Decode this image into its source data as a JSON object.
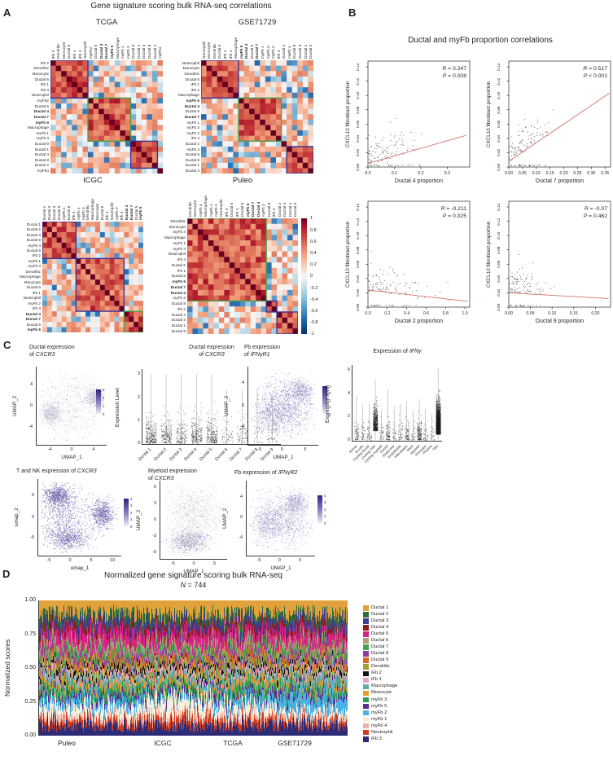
{
  "panelA": {
    "label": "A",
    "title": "Gene signature scoring bulk RNA-seq correlations",
    "colorbar_ticks": [
      "1",
      "0.8",
      "0.6",
      "0.4",
      "0.2",
      "0",
      "-0.2",
      "-0.4",
      "-0.6",
      "-0.8",
      "-1"
    ],
    "box_colors": {
      "navy": "#31319a",
      "green": "#3fa33f"
    },
    "heatmaps": [
      {
        "name": "TCGA",
        "seed": 11,
        "labels": [
          "iFb 2",
          "Dendritic",
          "Monocyte",
          "Ductal 6",
          "iFb 1",
          "iFb 3",
          "Neutrophil",
          "myFb2",
          "Ductal 5",
          "Ductal 4",
          "Ductal 7",
          "myFb 5",
          "Macrophage",
          "myFb 1",
          "myFb 3",
          "Ductal 9",
          "Ductal 1",
          "Ductal 3",
          "Ductal 8",
          "Ductal 2",
          "myFb4"
        ],
        "bold": [
          "Ductal 4",
          "Ductal 7",
          "myFb 5"
        ],
        "boxes": [
          {
            "s": 0,
            "e": 6,
            "c": "navy"
          },
          {
            "s": 7,
            "e": 14,
            "c": "green"
          },
          {
            "s": 15,
            "e": 19,
            "c": "navy"
          }
        ]
      },
      {
        "name": "GSE71729",
        "seed": 23,
        "labels": [
          "Neutrophil",
          "Monocyte",
          "Dendritic",
          "Ductal 6",
          "iFb 1",
          "iFb 2",
          "Macrophage",
          "myFb 5",
          "Ductal 4",
          "Ductal 5",
          "Ductal 7",
          "myFb 1",
          "myFb 3",
          "myFb 2",
          "iFb 3",
          "Ductal 2",
          "myFb 4",
          "Ductal 8",
          "Ductal 9",
          "Ductal 1",
          "Ductal 3"
        ],
        "bold": [
          "myFb 5",
          "Ductal 4",
          "Ductal 7"
        ],
        "boxes": [
          {
            "s": 0,
            "e": 6,
            "c": "navy"
          },
          {
            "s": 7,
            "e": 14,
            "c": "green"
          },
          {
            "s": 16,
            "e": 20,
            "c": "navy"
          }
        ]
      },
      {
        "name": "ICGC",
        "seed": 37,
        "labels": [
          "Ductal 1",
          "Ductal 2",
          "Ductal 3",
          "Ductal 9",
          "myFb 4",
          "Ductal 8",
          "iFb 2",
          "myFb 1",
          "myFb 3",
          "Dendritic",
          "Macrophage",
          "Monocyte",
          "Ductal 6",
          "iFb 1",
          "Neutrophil",
          "myFb 2",
          "iFb 3",
          "Ductal 4",
          "Ductal 7",
          "Ductal 5",
          "myFb 5"
        ],
        "bold": [
          "Ductal 4",
          "Ductal 7",
          "myFb 5"
        ],
        "boxes": [
          {
            "s": 0,
            "e": 6,
            "c": "navy"
          },
          {
            "s": 7,
            "e": 16,
            "c": "navy"
          },
          {
            "s": 17,
            "e": 20,
            "c": "green"
          }
        ]
      },
      {
        "name": "Puleo",
        "seed": 53,
        "labels": [
          "Dendritic",
          "Monocyte",
          "myFb 4",
          "Macrophage",
          "myFb 1",
          "myFb 3",
          "Neutrophil",
          "iFb 3",
          "Ductal 6",
          "iFb 1",
          "Ductal 5",
          "myFb 5",
          "Ductal 7",
          "Ductal 4",
          "myFb 2",
          "Ductal 8",
          "iFb 2",
          "Ductal 2",
          "Ductal 3",
          "Ductal 1",
          "Ductal 9"
        ],
        "bold": [
          "myFb 5",
          "Ductal 7",
          "Ductal 4"
        ],
        "boxes": [
          {
            "s": 0,
            "e": 14,
            "c": "green"
          },
          {
            "s": 15,
            "e": 16,
            "c": "navy"
          },
          {
            "s": 17,
            "e": 20,
            "c": "navy"
          }
        ]
      }
    ]
  },
  "panelB": {
    "label": "B",
    "title": "Ductal and myFb proportion correlations",
    "y_axis": "CXCL10 fibroblast proportion",
    "y_ticks": [
      "0.00",
      "0.02",
      "0.04",
      "0.06",
      "0.08",
      "0.10",
      "0.12",
      "0.14"
    ],
    "plots": [
      {
        "x_axis": "Ductal 4 proportion",
        "x_ticks": [
          "0.0",
          "0.1",
          "0.2",
          "0.3"
        ],
        "stat_r": "R = 0.247",
        "stat_p": "P = 0.008"
      },
      {
        "x_axis": "Ductal 7 proportion",
        "x_ticks": [
          "0.00",
          "0.05",
          "0.10",
          "0.15",
          "0.20",
          "0.25",
          "0.30",
          "0.35"
        ],
        "stat_r": "R = 0.517",
        "stat_p": "P < 0.001"
      },
      {
        "x_axis": "Ductal 2 proportion",
        "x_ticks": [
          "0.0",
          "0.2",
          "0.4",
          "0.6",
          "0.8",
          "1.0"
        ],
        "stat_r": "R = -0.211",
        "stat_p": "P = 0.025"
      },
      {
        "x_axis": "Ductal 9 proportion",
        "x_ticks": [
          "0.00",
          "0.05",
          "0.10",
          "0.15",
          "0.20"
        ],
        "stat_r": "R = -0.07",
        "stat_p": "P = 0.462"
      }
    ]
  },
  "panelC": {
    "label": "C",
    "plots": [
      {
        "kind": "umap",
        "key": "ductal_cxcr3",
        "line1": "Ductal expression",
        "line2_pre": "of ",
        "gene": "CXCR3",
        "x_label": "UMAP_1",
        "y_label": "UMAP_2",
        "x_ticks": [
          "-4",
          "0",
          "4"
        ],
        "y_ticks": [
          "4",
          "0",
          "-4"
        ],
        "cbar": [
          "3",
          "2",
          "1",
          "0"
        ]
      },
      {
        "kind": "strip",
        "key": "ductal_cxcr3_violin",
        "line1": "Ductal expression",
        "line2_pre": "of ",
        "gene": "CXCR3",
        "y_label": "Expression Level",
        "y_ticks": [
          "3",
          "2",
          "1",
          "0"
        ],
        "categories": [
          "Ductal 1",
          "Ductal 2",
          "Ductal 3",
          "Ductal 4",
          "Ductal 5",
          "Ductal 6",
          "Ductal 7",
          "Ductal 8",
          "Ductal 9"
        ]
      },
      {
        "kind": "umap",
        "key": "fb_ifngr1",
        "line1": "Fb expression",
        "line2_pre": "of ",
        "gene": "IFNγR1",
        "x_label": "UMAP_1",
        "y_label": "UMAP_2",
        "x_ticks": [
          "-5",
          "0",
          "5"
        ],
        "y_ticks": [
          "4",
          "0",
          "-4"
        ],
        "cbar": [
          "4",
          "3",
          "2",
          "1",
          "0"
        ]
      },
      {
        "kind": "strip",
        "key": "ifng_violin",
        "line_pre": "Expression of ",
        "gene": "IFNγ",
        "y_label": "Expression level",
        "y_ticks": [
          "6",
          "4",
          "2",
          "0"
        ],
        "categories": [
          "Acinar",
          "B cells",
          "Cycling ductal",
          "Cycling TNK",
          "Cycling myeloid",
          "Ductal",
          "Endocrine",
          "Endothelial",
          "Fibroblasts",
          "Mast",
          "Myeloid",
          "Pericytes",
          "Plasma",
          "TNK"
        ]
      },
      {
        "kind": "umap",
        "key": "tnk_cxcr3",
        "line_pre": "T and NK expression of ",
        "gene": "CXCR3",
        "x_label": "umap_1",
        "y_label": "umap_2",
        "x_ticks": [
          "-5",
          "0",
          "5",
          "10"
        ],
        "y_ticks": [
          "5",
          "0",
          "-5"
        ],
        "cbar": [
          "4",
          "3",
          "2",
          "1",
          "0"
        ]
      },
      {
        "kind": "umap",
        "key": "myeloid_cxcr3",
        "line1": "Myeloid expression",
        "line2_pre": "of ",
        "gene": "CXCR3",
        "x_label": "UMAP_1",
        "y_label": "UMAP_2",
        "x_ticks": [
          "-5",
          "0",
          "5"
        ],
        "y_ticks": [
          "6",
          "3",
          "0",
          "-3",
          "-6"
        ]
      },
      {
        "kind": "umap",
        "key": "fb_ifngr2",
        "line_pre": "Fb expression of ",
        "gene": "IFNγR2",
        "x_label": "UMAP_1",
        "y_label": "UMAP_2",
        "x_ticks": [
          "-5",
          "0",
          "5"
        ],
        "y_ticks": [
          "4",
          "0",
          "-4"
        ],
        "cbar": [
          "4",
          "3",
          "2",
          "1",
          "0"
        ]
      }
    ]
  },
  "panelD": {
    "label": "D",
    "title": "Normalized gene signature scoring bulk RNA-seq",
    "n_stat": "N",
    "n_value": "= 744",
    "y_label": "Normalized scores",
    "y_ticks": [
      "1.00",
      "0.75",
      "0.50",
      "0.25",
      "0.00"
    ],
    "x_labels": [
      "Puleo",
      "ICGC",
      "TCGA",
      "GSE71729"
    ],
    "legend": [
      {
        "label": "Ductal 1",
        "color": "#e2a23b"
      },
      {
        "label": "Ductal 2",
        "color": "#2e6b37"
      },
      {
        "label": "Ductal 3",
        "color": "#3c3c90"
      },
      {
        "label": "Ductal 4",
        "color": "#8c1a1a"
      },
      {
        "label": "Ductal 5",
        "color": "#d92287"
      },
      {
        "label": "Ductal 6",
        "color": "#b49b78"
      },
      {
        "label": "Ductal 7",
        "color": "#43a553"
      },
      {
        "label": "Ductal 8",
        "color": "#8e3a9e"
      },
      {
        "label": "Ductal 9",
        "color": "#d96a28"
      },
      {
        "label": "Dendritic",
        "color": "#a89f2e"
      },
      {
        "label": "iFb 2",
        "color": "#141414"
      },
      {
        "label": "iFb 1",
        "color": "#e3a6c9"
      },
      {
        "label": "Macrophage",
        "color": "#63ada8"
      },
      {
        "label": "Monocyte",
        "color": "#e69a28"
      },
      {
        "label": "myFb 3",
        "color": "#2f9e4b"
      },
      {
        "label": "myFb 5",
        "color": "#5a2c8f"
      },
      {
        "label": "myFb 2",
        "color": "#45b2e8"
      },
      {
        "label": "myFb 1",
        "color": "#f6f0da"
      },
      {
        "label": "myFb 4",
        "color": "#f2aea4"
      },
      {
        "label": "Neutrophil",
        "color": "#ce3d1d"
      },
      {
        "label": "iFb 3",
        "color": "#2b2b78"
      }
    ]
  },
  "chart_data": [
    {
      "type": "heatmap",
      "title": "TCGA",
      "value_range": [
        -1,
        1
      ],
      "order": [
        "iFb 2",
        "Dendritic",
        "Monocyte",
        "Ductal 6",
        "iFb 1",
        "iFb 3",
        "Neutrophil",
        "myFb2",
        "Ductal 5",
        "Ductal 4",
        "Ductal 7",
        "myFb 5",
        "Macrophage",
        "myFb 1",
        "myFb 3",
        "Ductal 9",
        "Ductal 1",
        "Ductal 3",
        "Ductal 8",
        "Ductal 2",
        "myFb4"
      ]
    },
    {
      "type": "heatmap",
      "title": "GSE71729",
      "value_range": [
        -1,
        1
      ],
      "order": [
        "Neutrophil",
        "Monocyte",
        "Dendritic",
        "Ductal 6",
        "iFb 1",
        "iFb 2",
        "Macrophage",
        "myFb 5",
        "Ductal 4",
        "Ductal 5",
        "Ductal 7",
        "myFb 1",
        "myFb 3",
        "myFb 2",
        "iFb 3",
        "Ductal 2",
        "myFb 4",
        "Ductal 8",
        "Ductal 9",
        "Ductal 1",
        "Ductal 3"
      ]
    },
    {
      "type": "heatmap",
      "title": "ICGC",
      "value_range": [
        -1,
        1
      ],
      "order": [
        "Ductal 1",
        "Ductal 2",
        "Ductal 3",
        "Ductal 9",
        "myFb 4",
        "Ductal 8",
        "iFb 2",
        "myFb 1",
        "myFb 3",
        "Dendritic",
        "Macrophage",
        "Monocyte",
        "Ductal 6",
        "iFb 1",
        "Neutrophil",
        "myFb 2",
        "iFb 3",
        "Ductal 4",
        "Ductal 7",
        "Ductal 5",
        "myFb 5"
      ]
    },
    {
      "type": "heatmap",
      "title": "Puleo",
      "value_range": [
        -1,
        1
      ],
      "order": [
        "Dendritic",
        "Monocyte",
        "myFb 4",
        "Macrophage",
        "myFb 1",
        "myFb 3",
        "Neutrophil",
        "iFb 3",
        "Ductal 6",
        "iFb 1",
        "Ductal 5",
        "myFb 5",
        "Ductal 7",
        "Ductal 4",
        "myFb 2",
        "Ductal 8",
        "iFb 2",
        "Ductal 2",
        "Ductal 3",
        "Ductal 1",
        "Ductal 9"
      ]
    },
    {
      "type": "scatter",
      "title": "Ductal 4 proportion vs CXCL10 fibroblast proportion",
      "R": 0.247,
      "P": "0.008",
      "xlim": [
        0,
        0.38
      ],
      "ylim": [
        0,
        0.14
      ]
    },
    {
      "type": "scatter",
      "title": "Ductal 7 proportion vs CXCL10 fibroblast proportion",
      "R": 0.517,
      "P": "<0.001",
      "xlim": [
        0,
        0.35
      ],
      "ylim": [
        0,
        0.14
      ]
    },
    {
      "type": "scatter",
      "title": "Ductal 2 proportion vs CXCL10 fibroblast proportion",
      "R": -0.211,
      "P": "0.025",
      "xlim": [
        0,
        1.0
      ],
      "ylim": [
        0,
        0.14
      ]
    },
    {
      "type": "scatter",
      "title": "Ductal 9 proportion vs CXCL10 fibroblast proportion",
      "R": -0.07,
      "P": "0.462",
      "xlim": [
        0,
        0.2
      ],
      "ylim": [
        0,
        0.14
      ]
    },
    {
      "type": "scatter",
      "subtype": "umap",
      "title": "Ductal expression of CXCR3",
      "xlabel": "UMAP_1",
      "ylabel": "UMAP_2",
      "color_range": [
        0,
        3
      ]
    },
    {
      "type": "scatter",
      "subtype": "strip",
      "title": "Ductal expression of CXCR3",
      "ylabel": "Expression Level",
      "ylim": [
        0,
        3
      ],
      "categories": [
        "Ductal 1",
        "Ductal 2",
        "Ductal 3",
        "Ductal 4",
        "Ductal 5",
        "Ductal 6",
        "Ductal 7",
        "Ductal 8",
        "Ductal 9"
      ]
    },
    {
      "type": "scatter",
      "subtype": "umap",
      "title": "Fb expression of IFNγR1",
      "xlabel": "UMAP_1",
      "ylabel": "UMAP_2",
      "color_range": [
        0,
        4
      ]
    },
    {
      "type": "scatter",
      "subtype": "strip",
      "title": "Expression of IFNγ",
      "ylabel": "Expression level",
      "ylim": [
        0,
        6
      ],
      "categories": [
        "Acinar",
        "B cells",
        "Cycling ductal",
        "Cycling TNK",
        "Cycling myeloid",
        "Ductal",
        "Endocrine",
        "Endothelial",
        "Fibroblasts",
        "Mast",
        "Myeloid",
        "Pericytes",
        "Plasma",
        "TNK"
      ]
    },
    {
      "type": "scatter",
      "subtype": "umap",
      "title": "T and NK expression of CXCR3",
      "xlabel": "umap_1",
      "ylabel": "umap_2",
      "color_range": [
        0,
        4
      ]
    },
    {
      "type": "scatter",
      "subtype": "umap",
      "title": "Myeloid expression of CXCR3",
      "xlabel": "UMAP_1",
      "ylabel": "UMAP_2"
    },
    {
      "type": "scatter",
      "subtype": "umap",
      "title": "Fb expression of IFNγR2",
      "xlabel": "UMAP_1",
      "ylabel": "UMAP_2",
      "color_range": [
        0,
        4
      ]
    },
    {
      "type": "area",
      "subtype": "stacked-normalized",
      "title": "Normalized gene signature scoring bulk RNA-seq",
      "N": 744,
      "ylim": [
        0,
        1
      ],
      "ylabel": "Normalized scores",
      "x_groups": [
        "Puleo",
        "ICGC",
        "TCGA",
        "GSE71729"
      ],
      "series": [
        "Ductal 1",
        "Ductal 2",
        "Ductal 3",
        "Ductal 4",
        "Ductal 5",
        "Ductal 6",
        "Ductal 7",
        "Ductal 8",
        "Ductal 9",
        "Dendritic",
        "iFb 2",
        "iFb 1",
        "Macrophage",
        "Monocyte",
        "myFb 3",
        "myFb 5",
        "myFb 2",
        "myFb 1",
        "myFb 4",
        "Neutrophil",
        "iFb 3"
      ]
    }
  ]
}
